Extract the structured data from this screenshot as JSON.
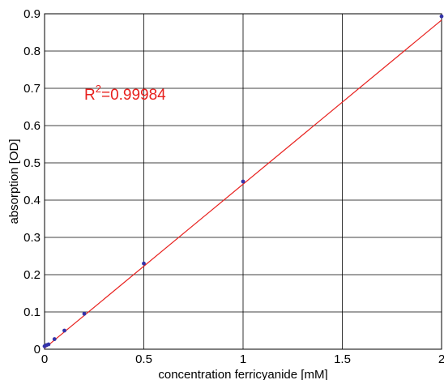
{
  "chart_data": {
    "type": "scatter",
    "xlabel": "concentration ferricyanide [mM]",
    "ylabel": "absorption [OD]",
    "xlim": [
      0,
      2
    ],
    "ylim": [
      0,
      0.9
    ],
    "x_ticks": [
      "0",
      "0.5",
      "1",
      "1.5",
      "2"
    ],
    "y_ticks": [
      "0",
      "0.1",
      "0.2",
      "0.3",
      "0.4",
      "0.5",
      "0.6",
      "0.7",
      "0.8",
      "0.9"
    ],
    "grid": true,
    "series": [
      {
        "points": [
          {
            "x": 0,
            "y": 0.008
          },
          {
            "x": 0.01,
            "y": 0.011
          },
          {
            "x": 0.02,
            "y": 0.013
          },
          {
            "x": 0.05,
            "y": 0.027
          },
          {
            "x": 0.1,
            "y": 0.05
          },
          {
            "x": 0.2,
            "y": 0.095
          },
          {
            "x": 0.5,
            "y": 0.23
          },
          {
            "x": 1,
            "y": 0.45
          },
          {
            "x": 2,
            "y": 0.893
          }
        ],
        "color": "#3333aa"
      }
    ],
    "fit_line": {
      "x": [
        0,
        2
      ],
      "y": [
        0.0025,
        0.883
      ],
      "color": "#e8211e"
    },
    "annotation": {
      "prefix": "R",
      "superscript": "2",
      "text": "=0.99984",
      "x": 0.2,
      "y": 0.67,
      "color": "#e8211e"
    }
  }
}
